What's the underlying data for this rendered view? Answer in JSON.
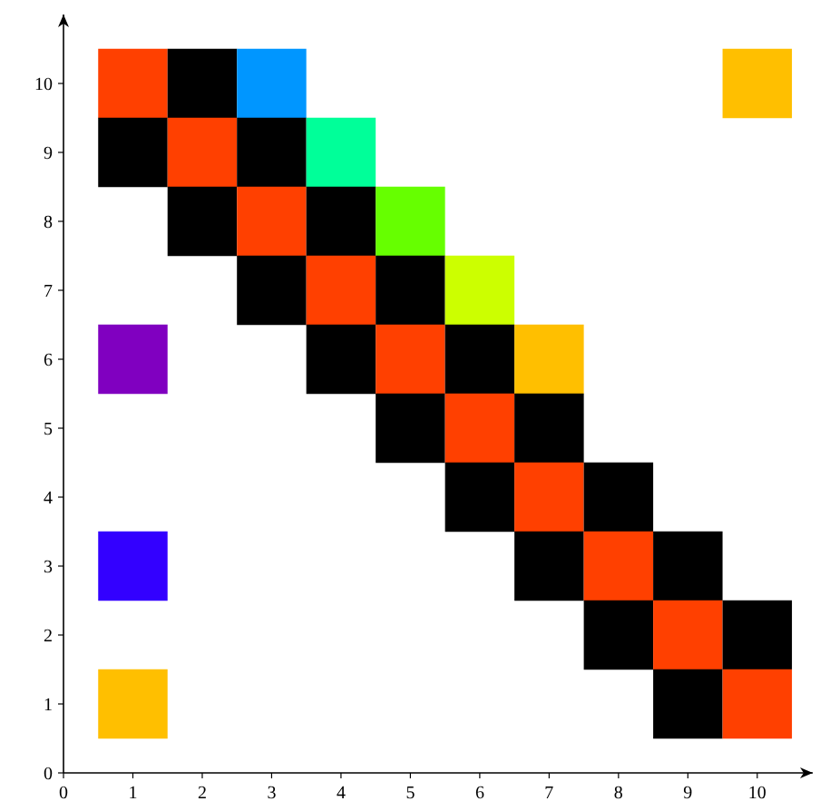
{
  "chart_data": {
    "type": "scatter",
    "marker": "square",
    "xlim": [
      0,
      10.8
    ],
    "ylim": [
      0,
      11
    ],
    "xticks": [
      0,
      1,
      2,
      3,
      4,
      5,
      6,
      7,
      8,
      9,
      10
    ],
    "yticks": [
      0,
      1,
      2,
      3,
      4,
      5,
      6,
      7,
      8,
      9,
      10
    ],
    "grid": false,
    "x": [
      1,
      2,
      3,
      10,
      1,
      2,
      3,
      4,
      2,
      3,
      4,
      5,
      3,
      4,
      5,
      6,
      1,
      4,
      5,
      6,
      7,
      5,
      6,
      7,
      6,
      7,
      8,
      1,
      7,
      8,
      9,
      8,
      9,
      10,
      1,
      9,
      10
    ],
    "values": [
      10,
      10,
      10,
      10,
      9,
      9,
      9,
      9,
      8,
      8,
      8,
      8,
      7,
      7,
      7,
      7,
      6,
      6,
      6,
      6,
      6,
      5,
      5,
      5,
      4,
      4,
      4,
      3,
      3,
      3,
      3,
      2,
      2,
      2,
      1,
      1,
      1
    ],
    "colors": [
      "#ff4000",
      "#000000",
      "#0096ff",
      "#ffbf00",
      "#000000",
      "#ff4000",
      "#000000",
      "#00ff99",
      "#000000",
      "#ff4000",
      "#000000",
      "#66ff00",
      "#000000",
      "#ff4000",
      "#000000",
      "#ccff00",
      "#8000c0",
      "#000000",
      "#ff4000",
      "#000000",
      "#ffbf00",
      "#000000",
      "#ff4000",
      "#000000",
      "#000000",
      "#ff4000",
      "#000000",
      "#3300ff",
      "#000000",
      "#ff4000",
      "#000000",
      "#000000",
      "#ff4000",
      "#000000",
      "#ffbf00",
      "#000000",
      "#ff4000"
    ]
  }
}
